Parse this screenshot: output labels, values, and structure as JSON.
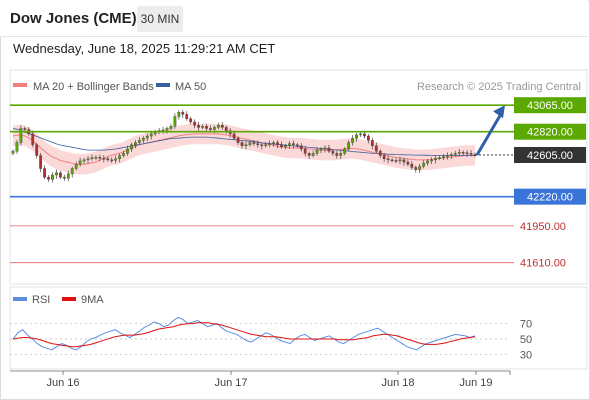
{
  "header": {
    "title": "Dow Jones (CME)",
    "timeframe": "30 MIN",
    "datetime": "Wednesday, June 18, 2025 11:29:21 AM CET"
  },
  "watermark": "Research © 2025 Trading Central",
  "colors": {
    "resistance": "#5aa800",
    "support": "#3b74d9",
    "target": "#e06060",
    "price": "#333333",
    "bollinger": "#f9c9c9",
    "ma20": "#f08080",
    "ma50": "#3a5fa0",
    "rsi": "#5b8fe0",
    "rsi_ma": "#e01010",
    "candle_up": "#5aa800",
    "candle_down": "#b03030",
    "arrow": "#2f5fa8"
  },
  "chart_data": [
    {
      "type": "candlestick",
      "legend": [
        {
          "name": "MA 20 + Bollinger Bands",
          "color": "#f08080"
        },
        {
          "name": "MA 50",
          "color": "#3a5fa0"
        }
      ],
      "x_ticks": [
        "Jun 16",
        "Jun 17",
        "Jun 18",
        "Jun 19"
      ],
      "ylim": [
        41450,
        43150
      ],
      "levels": [
        {
          "label": "43065.00",
          "value": 43065,
          "kind": "resistance"
        },
        {
          "label": "42820.00",
          "value": 42820,
          "kind": "resistance"
        },
        {
          "label": "42605.00",
          "value": 42605,
          "kind": "price"
        },
        {
          "label": "42220.00",
          "value": 42220,
          "kind": "support"
        },
        {
          "label": "41950.00",
          "value": 41950,
          "kind": "target"
        },
        {
          "label": "41610.00",
          "value": 41610,
          "kind": "target"
        }
      ],
      "close": [
        42640,
        42720,
        42850,
        42840,
        42800,
        42700,
        42600,
        42480,
        42400,
        42380,
        42420,
        42440,
        42400,
        42390,
        42430,
        42480,
        42520,
        42550,
        42560,
        42570,
        42580,
        42585,
        42575,
        42570,
        42560,
        42555,
        42570,
        42600,
        42620,
        42660,
        42700,
        42720,
        42740,
        42760,
        42780,
        42800,
        42820,
        42830,
        42835,
        42850,
        42870,
        42960,
        43000,
        42980,
        42940,
        42910,
        42880,
        42860,
        42870,
        42850,
        42840,
        42860,
        42880,
        42860,
        42830,
        42800,
        42760,
        42720,
        42690,
        42700,
        42720,
        42710,
        42700,
        42690,
        42700,
        42710,
        42720,
        42700,
        42680,
        42690,
        42710,
        42700,
        42690,
        42660,
        42620,
        42600,
        42620,
        42650,
        42660,
        42670,
        42640,
        42620,
        42600,
        42620,
        42660,
        42720,
        42760,
        42790,
        42800,
        42780,
        42740,
        42690,
        42640,
        42600,
        42570,
        42560,
        42555,
        42550,
        42560,
        42540,
        42520,
        42490,
        42470,
        42500,
        42530,
        42550,
        42560,
        42575,
        42580,
        42590,
        42600,
        42610,
        42620,
        42630,
        42625,
        42620,
        42610,
        42605
      ],
      "ma20": [
        42780,
        42790,
        42790,
        42770,
        42740,
        42700,
        42660,
        42620,
        42590,
        42570,
        42550,
        42540,
        42530,
        42520,
        42520,
        42520,
        42530,
        42540,
        42560,
        42580,
        42600,
        42610,
        42620,
        42640,
        42660,
        42680,
        42700,
        42710,
        42720,
        42730,
        42740,
        42750,
        42760,
        42770,
        42780,
        42790,
        42795,
        42800,
        42800,
        42800,
        42800,
        42800,
        42800,
        42795,
        42790,
        42780,
        42770,
        42760,
        42750,
        42740,
        42730,
        42720,
        42710,
        42700,
        42690,
        42680,
        42675,
        42670,
        42670,
        42670,
        42665,
        42660,
        42655,
        42650,
        42650,
        42650,
        42650,
        42655,
        42660,
        42665,
        42665,
        42660,
        42650,
        42640,
        42630,
        42620,
        42610,
        42600,
        42590,
        42580,
        42575,
        42570,
        42565,
        42560,
        42560,
        42560,
        42565,
        42570,
        42575,
        42580,
        42585,
        42590,
        42595,
        42600,
        42600,
        42600
      ],
      "ma50": [
        42850,
        42840,
        42820,
        42800,
        42780,
        42760,
        42740,
        42720,
        42700,
        42690,
        42680,
        42670,
        42660,
        42650,
        42650,
        42650,
        42650,
        42655,
        42660,
        42670,
        42680,
        42690,
        42700,
        42710,
        42720,
        42730,
        42740,
        42750,
        42760,
        42760,
        42765,
        42770,
        42770,
        42770,
        42770,
        42765,
        42760,
        42755,
        42750,
        42745,
        42740,
        42735,
        42730,
        42720,
        42715,
        42710,
        42705,
        42700,
        42695,
        42690,
        42685,
        42680,
        42675,
        42670,
        42665,
        42660,
        42655,
        42650,
        42645,
        42640,
        42635,
        42630,
        42625,
        42620,
        42618,
        42615,
        42612,
        42610,
        42608,
        42606,
        42605,
        42604,
        42603,
        42602,
        42601,
        42600,
        42600,
        42600,
        42600,
        42600,
        42600,
        42600
      ]
    },
    {
      "type": "line",
      "legend": [
        {
          "name": "RSI",
          "color": "#5b8fe0"
        },
        {
          "name": "9MA",
          "color": "#e01010"
        }
      ],
      "y_ticks": [
        70,
        50,
        30
      ],
      "ylim": [
        15,
        85
      ],
      "series": [
        {
          "name": "RSI",
          "values": [
            50,
            58,
            62,
            55,
            50,
            44,
            40,
            38,
            36,
            40,
            44,
            42,
            38,
            36,
            40,
            46,
            50,
            52,
            55,
            58,
            60,
            62,
            58,
            55,
            52,
            56,
            60,
            65,
            68,
            72,
            70,
            66,
            68,
            74,
            78,
            75,
            70,
            72,
            74,
            70,
            66,
            68,
            70,
            64,
            60,
            58,
            56,
            52,
            48,
            46,
            50,
            54,
            58,
            56,
            52,
            48,
            46,
            44,
            50,
            54,
            56,
            52,
            48,
            50,
            52,
            54,
            50,
            46,
            44,
            48,
            52,
            56,
            58,
            60,
            62,
            64,
            60,
            56,
            52,
            48,
            44,
            40,
            38,
            36,
            40,
            44,
            46,
            48,
            50,
            52,
            54,
            56,
            55,
            54,
            52,
            54
          ]
        },
        {
          "name": "9MA",
          "values": [
            50,
            51,
            52,
            52,
            51,
            50,
            48,
            46,
            44,
            43,
            42,
            41,
            40,
            40,
            41,
            42,
            43,
            45,
            47,
            49,
            51,
            53,
            54,
            55,
            55,
            55,
            56,
            57,
            59,
            61,
            63,
            64,
            65,
            66,
            68,
            69,
            70,
            70,
            71,
            71,
            71,
            70,
            69,
            68,
            66,
            64,
            62,
            60,
            58,
            56,
            55,
            54,
            53,
            53,
            53,
            52,
            51,
            50,
            50,
            50,
            50,
            50,
            50,
            50,
            50,
            50,
            50,
            49,
            49,
            49,
            49,
            50,
            51,
            52,
            54,
            55,
            56,
            56,
            55,
            54,
            52,
            50,
            48,
            46,
            44,
            43,
            43,
            43,
            44,
            45,
            47,
            48,
            50,
            51,
            52,
            53
          ]
        }
      ]
    }
  ]
}
